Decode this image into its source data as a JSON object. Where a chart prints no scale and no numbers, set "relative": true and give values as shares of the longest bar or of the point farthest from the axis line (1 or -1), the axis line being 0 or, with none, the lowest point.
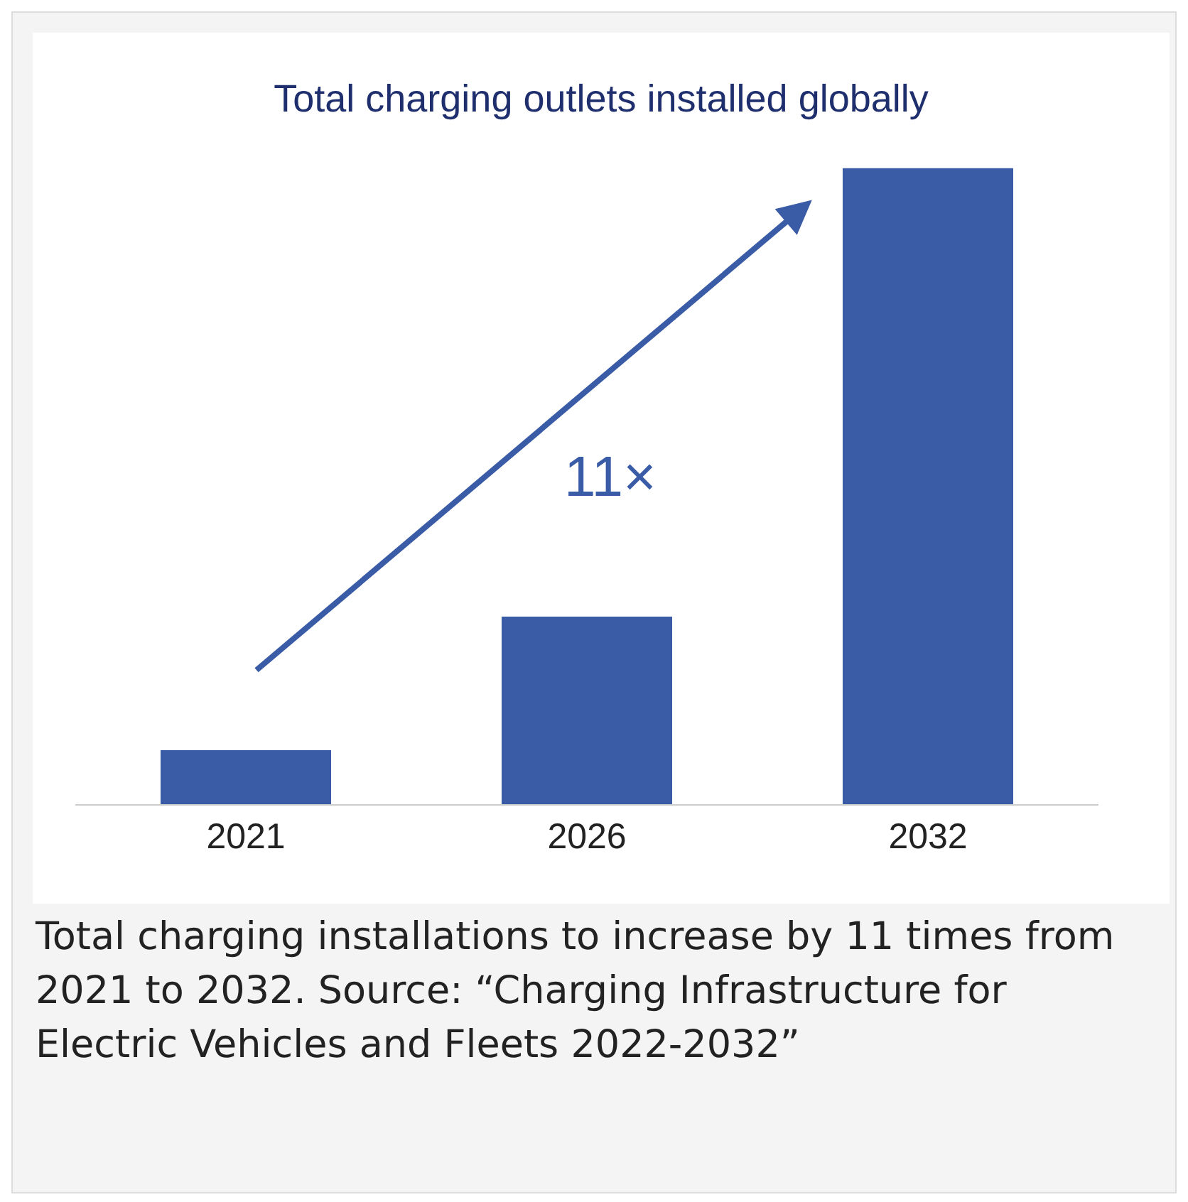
{
  "chart_data": {
    "type": "bar",
    "title": "Total charging outlets installed globally",
    "relative": true,
    "categories": [
      "2021",
      "2026",
      "2032"
    ],
    "values": [
      0.085,
      0.295,
      1
    ],
    "color": "#3a5ca6",
    "annotations": [
      "11×",
      "Total charging installations to increase by 11 times from 2021 to 2032. Source: “Charging Infrastructure for Electric Vehicles and Fleets 2022-2032”"
    ]
  }
}
